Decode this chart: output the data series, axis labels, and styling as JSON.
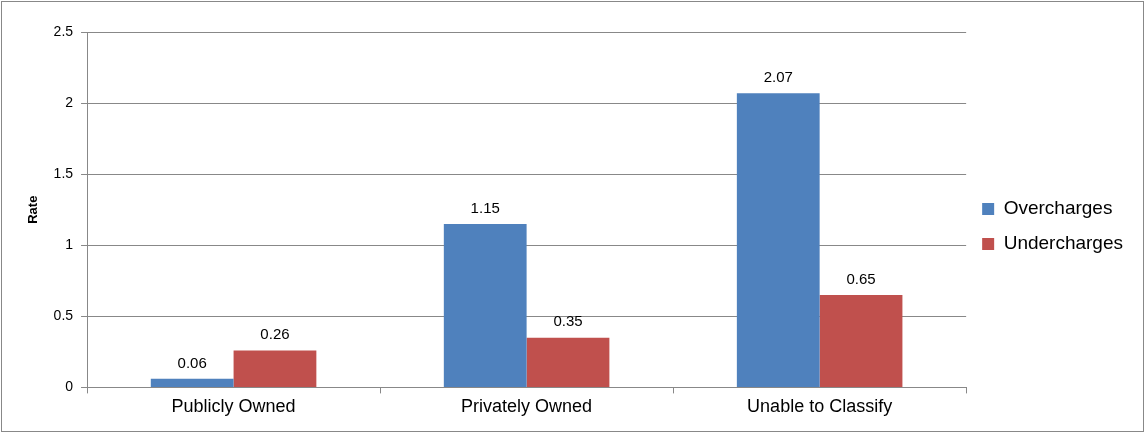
{
  "chart_data": {
    "type": "bar",
    "ylabel": "Rate",
    "categories": [
      "Publicly Owned",
      "Privately Owned",
      "Unable to Classify"
    ],
    "series": [
      {
        "name": "Overcharges",
        "color": "#4f81bd",
        "values": [
          0.06,
          1.15,
          2.07
        ]
      },
      {
        "name": "Undercharges",
        "color": "#c0504d",
        "values": [
          0.26,
          0.35,
          0.65
        ]
      }
    ],
    "ylim": [
      0,
      2.5
    ],
    "yticks": [
      0,
      0.5,
      1,
      1.5,
      2,
      2.5
    ],
    "grid": "y",
    "legend": "right",
    "data_labels": true
  }
}
